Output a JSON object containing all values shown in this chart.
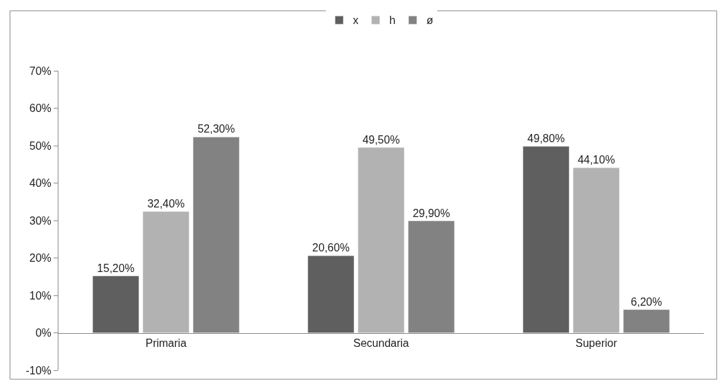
{
  "chart_data": {
    "type": "bar",
    "categories": [
      "Primaria",
      "Secundaria",
      "Superior"
    ],
    "series": [
      {
        "name": "x",
        "color": "#5f5f5f",
        "values": [
          15.2,
          20.6,
          49.8
        ],
        "value_labels": [
          "15,20%",
          "20,60%",
          "49,80%"
        ]
      },
      {
        "name": "h",
        "color": "#b2b2b2",
        "values": [
          32.4,
          49.5,
          44.1
        ],
        "value_labels": [
          "32,40%",
          "49,50%",
          "44,10%"
        ]
      },
      {
        "name": "ø",
        "color": "#828282",
        "values": [
          52.3,
          29.9,
          6.2
        ],
        "value_labels": [
          "52,30%",
          "29,90%",
          "6,20%"
        ]
      }
    ],
    "ylim": [
      -10,
      70
    ],
    "yticks": [
      {
        "value": -10,
        "label": "-10%"
      },
      {
        "value": 0,
        "label": "0%"
      },
      {
        "value": 10,
        "label": "10%"
      },
      {
        "value": 20,
        "label": "20%"
      },
      {
        "value": 30,
        "label": "30%"
      },
      {
        "value": 40,
        "label": "40%"
      },
      {
        "value": 50,
        "label": "50%"
      },
      {
        "value": 60,
        "label": "60%"
      },
      {
        "value": 70,
        "label": "70%"
      }
    ],
    "grid": false,
    "legend": "top"
  }
}
